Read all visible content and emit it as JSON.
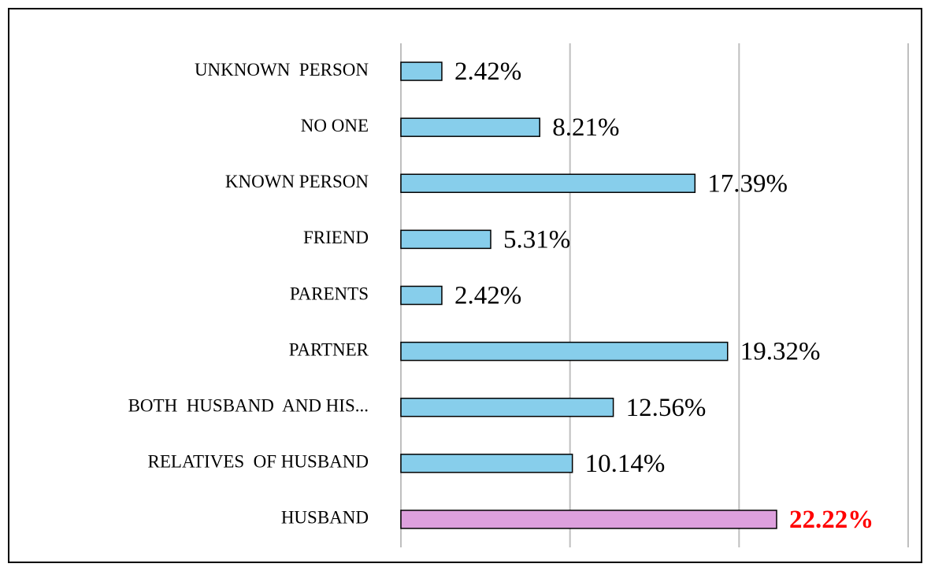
{
  "chart_data": {
    "type": "hbar",
    "categories": [
      "UNKNOWN  PERSON",
      "NO ONE",
      "KNOWN PERSON",
      "FRIEND",
      "PARENTS",
      "PARTNER",
      "BOTH  HUSBAND  AND HIS...",
      "RELATIVES  OF HUSBAND",
      "HUSBAND"
    ],
    "values": [
      2.42,
      8.21,
      17.39,
      5.31,
      2.42,
      19.32,
      12.56,
      10.14,
      22.22
    ],
    "value_labels": [
      "2.42%",
      "8.21%",
      "17.39%",
      "5.31%",
      "2.42%",
      "19.32%",
      "12.56%",
      "10.14%",
      "22.22%"
    ],
    "colors": [
      "#87ceeb",
      "#87ceeb",
      "#87ceeb",
      "#87ceeb",
      "#87ceeb",
      "#87ceeb",
      "#87ceeb",
      "#87ceeb",
      "#dda0dd"
    ],
    "value_label_colors": [
      "#000000",
      "#000000",
      "#000000",
      "#000000",
      "#000000",
      "#000000",
      "#000000",
      "#000000",
      "#ff0000"
    ],
    "xlim": [
      0,
      30
    ],
    "xticks": [
      0,
      10,
      20,
      30
    ],
    "grid": true
  }
}
